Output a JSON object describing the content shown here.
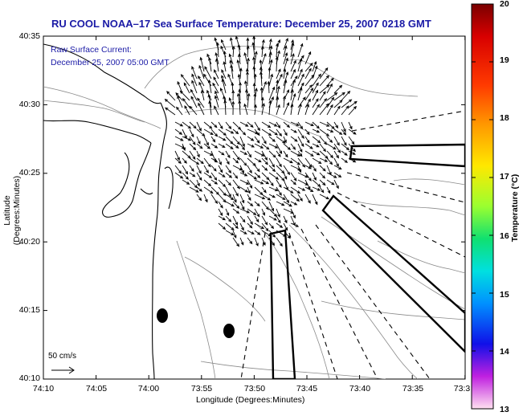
{
  "title": "RU COOL  NOAA–17  Sea Surface Temperature:  December 25, 2007 0218 GMT",
  "current_label": {
    "line1": "Raw Surface Current:",
    "line2": "December 25, 2007 05:00 GMT"
  },
  "axes": {
    "xlabel": "Longitude (Degrees:Minutes)",
    "ylabel": "Latitude (Degrees:Minutes)",
    "xticks": [
      "74:10",
      "74:05",
      "74:00",
      "73:55",
      "73:50",
      "73:45",
      "73:40",
      "73:35",
      "73:3"
    ],
    "yticks": [
      "40:35",
      "40:30",
      "40:25",
      "40:20",
      "40:15",
      "40:10"
    ]
  },
  "scale_bar": {
    "label": "50 cm/s"
  },
  "colorbar": {
    "label": "Temperature (°C)",
    "ticks": [
      "20",
      "19",
      "18",
      "17",
      "16",
      "15",
      "14",
      "13"
    ],
    "min": 13,
    "max": 20
  },
  "map": {
    "land_color": "#ffffff",
    "coast_color": "#000000",
    "contour_color": "#888888",
    "vector_color": "#000000",
    "sst_visible": false
  }
}
